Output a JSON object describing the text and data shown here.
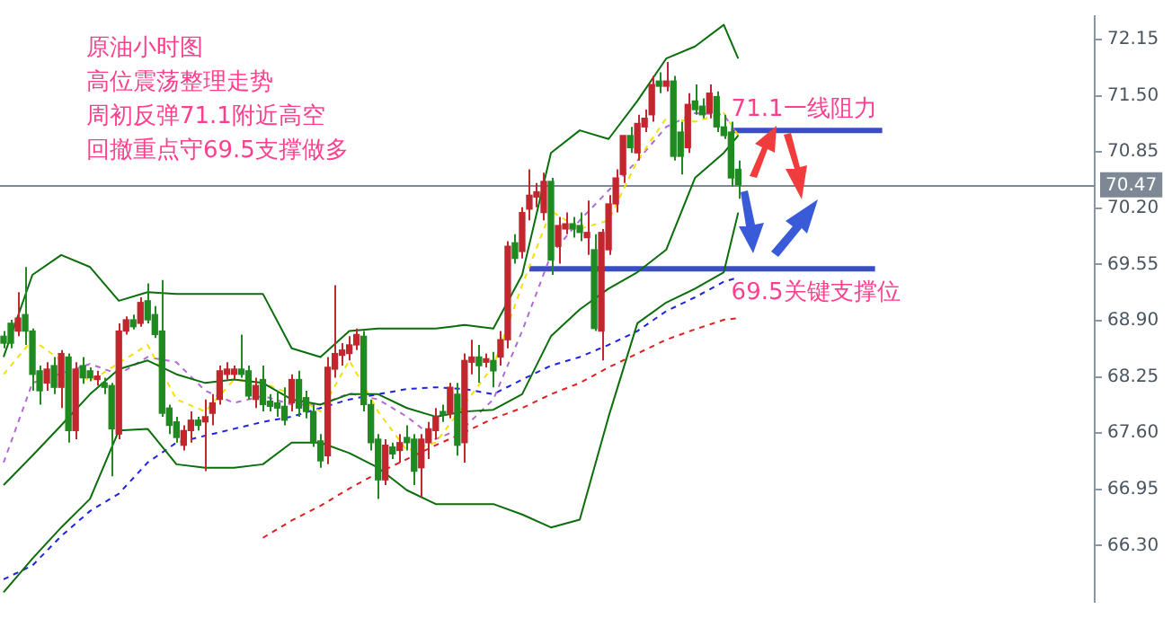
{
  "chart_data": {
    "type": "candlestick",
    "categories": [
      null,
      null,
      null,
      null,
      null,
      null,
      null,
      null,
      null,
      null,
      null,
      null,
      null,
      null,
      null,
      null,
      null,
      null,
      null,
      null,
      null,
      null,
      null,
      null,
      null,
      null,
      null,
      null,
      null,
      null,
      null,
      null,
      null,
      null,
      null,
      null,
      null,
      null,
      null,
      null,
      null,
      null,
      null,
      null,
      null,
      null,
      null,
      null,
      null,
      null,
      null,
      null,
      null,
      null,
      null,
      null,
      null,
      null,
      null,
      null,
      null,
      null,
      null,
      null,
      null,
      null,
      null,
      null,
      null,
      null,
      null,
      null,
      null,
      null,
      null,
      null,
      null,
      null,
      null,
      null,
      null,
      null,
      null,
      null,
      null,
      null,
      null,
      null,
      null,
      null,
      null,
      null,
      null,
      null,
      null,
      null,
      null,
      null,
      null,
      null,
      null,
      null,
      null,
      null,
      null,
      null,
      null,
      null,
      null,
      null,
      null,
      null,
      null,
      null,
      null,
      null,
      null,
      null,
      null,
      null,
      null,
      null,
      null,
      null,
      null,
      null,
      null,
      null,
      null,
      null,
      null,
      null,
      null,
      null,
      null,
      null,
      null,
      null,
      null,
      null,
      null,
      null,
      null,
      null,
      null,
      null,
      null,
      null,
      null,
      null,
      null,
      null
    ],
    "ohlc": [
      [
        68.72,
        68.78,
        68.58,
        68.64
      ],
      [
        68.87,
        68.91,
        68.58,
        68.64
      ],
      [
        68.78,
        69.23,
        68.72,
        68.93
      ],
      [
        68.97,
        69.52,
        68.62,
        68.78
      ],
      [
        68.78,
        68.81,
        68.09,
        68.28
      ],
      [
        68.32,
        68.38,
        67.93,
        68.09
      ],
      [
        68.18,
        68.42,
        68.09,
        68.34
      ],
      [
        68.38,
        68.48,
        68.05,
        68.13
      ],
      [
        68.13,
        68.56,
        67.89,
        68.52
      ],
      [
        68.48,
        68.52,
        67.49,
        67.63
      ],
      [
        67.63,
        68.42,
        67.53,
        68.34
      ],
      [
        68.38,
        68.48,
        68.17,
        68.24
      ],
      [
        68.32,
        68.36,
        68.2,
        68.24
      ],
      [
        68.22,
        68.32,
        68.15,
        68.26
      ],
      [
        68.18,
        68.24,
        68.05,
        68.13
      ],
      [
        68.15,
        68.18,
        67.1,
        67.65
      ],
      [
        67.59,
        68.87,
        67.53,
        68.78
      ],
      [
        68.78,
        68.95,
        68.74,
        68.91
      ],
      [
        68.91,
        68.97,
        68.8,
        68.83
      ],
      [
        68.87,
        69.17,
        68.83,
        69.11
      ],
      [
        69.13,
        69.33,
        68.87,
        68.91
      ],
      [
        68.97,
        69.07,
        68.7,
        68.74
      ],
      [
        68.78,
        69.37,
        67.79,
        67.83
      ],
      [
        67.89,
        67.93,
        67.59,
        67.69
      ],
      [
        67.73,
        67.79,
        67.49,
        67.55
      ],
      [
        67.46,
        67.69,
        67.4,
        67.63
      ],
      [
        67.63,
        67.85,
        67.49,
        67.75
      ],
      [
        67.75,
        67.79,
        67.63,
        67.69
      ],
      [
        67.73,
        67.99,
        67.16,
        67.79
      ],
      [
        67.83,
        68.05,
        67.69,
        67.95
      ],
      [
        67.99,
        68.38,
        67.93,
        68.32
      ],
      [
        68.28,
        68.42,
        68.22,
        68.34
      ],
      [
        68.28,
        68.38,
        68.22,
        68.34
      ],
      [
        68.34,
        68.74,
        68.24,
        68.28
      ],
      [
        68.32,
        68.38,
        67.99,
        68.03
      ],
      [
        67.99,
        68.24,
        67.89,
        68.15
      ],
      [
        68.22,
        68.38,
        67.85,
        67.93
      ],
      [
        67.97,
        68.05,
        67.85,
        67.91
      ],
      [
        67.95,
        68.09,
        67.79,
        67.89
      ],
      [
        67.91,
        68.13,
        67.69,
        67.75
      ],
      [
        67.95,
        68.28,
        67.85,
        68.22
      ],
      [
        68.22,
        68.32,
        67.79,
        67.89
      ],
      [
        68.01,
        68.09,
        67.77,
        67.85
      ],
      [
        67.85,
        67.93,
        67.44,
        67.49
      ],
      [
        67.51,
        67.59,
        67.2,
        67.28
      ],
      [
        67.34,
        68.48,
        67.24,
        68.36
      ],
      [
        68.34,
        69.31,
        68.24,
        68.52
      ],
      [
        68.5,
        68.64,
        68.38,
        68.56
      ],
      [
        68.52,
        68.72,
        68.44,
        68.62
      ],
      [
        68.62,
        68.81,
        68.56,
        68.74
      ],
      [
        68.72,
        68.78,
        67.85,
        67.93
      ],
      [
        67.93,
        67.99,
        67.4,
        67.49
      ],
      [
        67.53,
        67.59,
        66.84,
        67.06
      ],
      [
        67.06,
        67.53,
        67.0,
        67.46
      ],
      [
        67.44,
        67.49,
        67.3,
        67.36
      ],
      [
        67.4,
        67.59,
        67.26,
        67.49
      ],
      [
        67.55,
        67.69,
        67.4,
        67.49
      ],
      [
        67.53,
        67.59,
        67.0,
        67.16
      ],
      [
        67.2,
        67.59,
        66.86,
        67.53
      ],
      [
        67.49,
        67.73,
        67.3,
        67.65
      ],
      [
        67.63,
        67.89,
        67.53,
        67.79
      ],
      [
        67.85,
        67.93,
        67.73,
        67.81
      ],
      [
        67.83,
        68.18,
        67.77,
        68.13
      ],
      [
        68.05,
        68.18,
        67.34,
        67.46
      ],
      [
        67.49,
        68.52,
        67.26,
        68.44
      ],
      [
        68.42,
        68.68,
        68.28,
        68.48
      ],
      [
        68.48,
        68.62,
        68.18,
        68.38
      ],
      [
        68.42,
        68.52,
        68.36,
        68.46
      ],
      [
        68.44,
        68.54,
        68.13,
        68.32
      ],
      [
        68.48,
        68.78,
        68.38,
        68.68
      ],
      [
        68.68,
        69.82,
        68.58,
        69.76
      ],
      [
        69.8,
        69.9,
        69.56,
        69.62
      ],
      [
        69.7,
        70.21,
        69.62,
        70.15
      ],
      [
        70.19,
        70.65,
        70.06,
        70.35
      ],
      [
        70.33,
        70.49,
        70.21,
        70.39
      ],
      [
        70.15,
        70.61,
        70.06,
        70.51
      ],
      [
        70.51,
        70.55,
        69.43,
        69.6
      ],
      [
        69.76,
        70.1,
        69.56,
        70.0
      ],
      [
        69.96,
        70.15,
        69.9,
        70.02
      ],
      [
        70.02,
        70.1,
        69.86,
        69.96
      ],
      [
        70.0,
        70.15,
        69.82,
        69.92
      ],
      [
        69.86,
        70.29,
        69.66,
        69.92
      ],
      [
        69.72,
        69.9,
        68.78,
        68.81
      ],
      [
        68.78,
        69.96,
        68.44,
        69.92
      ],
      [
        69.72,
        70.35,
        69.66,
        70.25
      ],
      [
        70.25,
        70.65,
        70.15,
        70.55
      ],
      [
        70.59,
        71.04,
        70.49,
        71.04
      ],
      [
        71.04,
        71.14,
        70.84,
        70.9
      ],
      [
        70.84,
        71.28,
        70.75,
        71.18
      ],
      [
        71.14,
        71.34,
        71.08,
        71.24
      ],
      [
        71.28,
        71.73,
        71.2,
        71.63
      ],
      [
        71.67,
        71.77,
        71.53,
        71.61
      ],
      [
        71.61,
        71.89,
        71.55,
        71.67
      ],
      [
        71.67,
        71.73,
        70.75,
        70.8
      ],
      [
        71.08,
        71.2,
        70.59,
        70.8
      ],
      [
        70.9,
        71.53,
        70.84,
        71.4
      ],
      [
        71.44,
        71.63,
        71.28,
        71.34
      ],
      [
        71.38,
        71.47,
        71.24,
        71.28
      ],
      [
        71.3,
        71.63,
        71.24,
        71.53
      ],
      [
        71.49,
        71.55,
        71.08,
        71.14
      ],
      [
        71.14,
        71.28,
        71.0,
        71.04
      ],
      [
        71.08,
        71.2,
        70.45,
        70.55
      ],
      [
        70.65,
        70.75,
        70.31,
        70.47
      ],
      null,
      null,
      null,
      null,
      null,
      null,
      null,
      null,
      null,
      null,
      null,
      null,
      null,
      null,
      null,
      null,
      null,
      null,
      null,
      null,
      null,
      null,
      null,
      null,
      null,
      null,
      null,
      null,
      null,
      null,
      null,
      null,
      null,
      null,
      null,
      null,
      null,
      null,
      null,
      null,
      null,
      null,
      null,
      null,
      null,
      null,
      null,
      null,
      null
    ],
    "colors": [
      "#1f8a1f",
      "#1f8a1f",
      "#c1272d",
      "#1f8a1f",
      "#1f8a1f",
      "#1f8a1f",
      "#c1272d",
      "#1f8a1f",
      "#c1272d",
      "#1f8a1f",
      "#c1272d",
      "#1f8a1f",
      "#1f8a1f",
      "#c1272d",
      "#1f8a1f",
      "#1f8a1f",
      "#c1272d",
      "#c1272d",
      "#1f8a1f",
      "#c1272d",
      "#1f8a1f",
      "#1f8a1f",
      "#1f8a1f",
      "#1f8a1f",
      "#1f8a1f",
      "#c1272d",
      "#c1272d",
      "#1f8a1f",
      "#c1272d",
      "#c1272d",
      "#c1272d",
      "#c1272d",
      "#c1272d",
      "#1f8a1f",
      "#1f8a1f",
      "#c1272d",
      "#1f8a1f",
      "#1f8a1f",
      "#1f8a1f",
      "#1f8a1f",
      "#c1272d",
      "#1f8a1f",
      "#1f8a1f",
      "#1f8a1f",
      "#1f8a1f",
      "#c1272d",
      "#c1272d",
      "#c1272d",
      "#c1272d",
      "#c1272d",
      "#1f8a1f",
      "#1f8a1f",
      "#1f8a1f",
      "#c1272d",
      "#1f8a1f",
      "#c1272d",
      "#1f8a1f",
      "#1f8a1f",
      "#c1272d",
      "#c1272d",
      "#c1272d",
      "#1f8a1f",
      "#c1272d",
      "#1f8a1f",
      "#c1272d",
      "#c1272d",
      "#1f8a1f",
      "#c1272d",
      "#1f8a1f",
      "#c1272d",
      "#c1272d",
      "#1f8a1f",
      "#c1272d",
      "#c1272d",
      "#c1272d",
      "#c1272d",
      "#1f8a1f",
      "#c1272d",
      "#c1272d",
      "#1f8a1f",
      "#1f8a1f",
      "#c1272d",
      "#1f8a1f",
      "#c1272d",
      "#c1272d",
      "#c1272d",
      "#c1272d",
      "#1f8a1f",
      "#c1272d",
      "#c1272d",
      "#c1272d",
      "#1f8a1f",
      "#c1272d",
      "#1f8a1f",
      "#1f8a1f",
      "#c1272d",
      "#1f8a1f",
      "#1f8a1f",
      "#c1272d",
      "#1f8a1f",
      "#1f8a1f",
      "#1f8a1f",
      "#1f8a1f",
      null,
      null,
      null,
      null,
      null,
      null,
      null,
      null,
      null,
      null,
      null,
      null,
      null,
      null,
      null,
      null,
      null,
      null,
      null,
      null,
      null,
      null,
      null,
      null,
      null,
      null,
      null,
      null,
      null,
      null,
      null,
      null,
      null,
      null,
      null,
      null,
      null,
      null,
      null,
      null,
      null,
      null,
      null,
      null,
      null,
      null,
      null,
      null,
      null
    ],
    "series": [
      {
        "type": "line",
        "color": "#0a6e0a",
        "line_style": "solid",
        "values": [
          68.48,
          null,
          null,
          null,
          69.43,
          null,
          null,
          null,
          69.66,
          null,
          null,
          null,
          69.52,
          null,
          null,
          null,
          69.13,
          null,
          null,
          null,
          69.23,
          null,
          null,
          null,
          69.21,
          null,
          null,
          null,
          69.21,
          null,
          null,
          null,
          69.21,
          null,
          null,
          null,
          69.21,
          null,
          null,
          null,
          68.58,
          null,
          null,
          null,
          68.48,
          null,
          null,
          null,
          68.78,
          null,
          null,
          null,
          68.81,
          null,
          null,
          null,
          68.81,
          null,
          null,
          null,
          68.81,
          null,
          null,
          null,
          68.85,
          null,
          null,
          null,
          68.81,
          null,
          null,
          null,
          69.43,
          null,
          null,
          null,
          70.84,
          null,
          null,
          null,
          71.1,
          null,
          null,
          null,
          71.0,
          null,
          null,
          null,
          71.44,
          null,
          null,
          null,
          71.93,
          null,
          null,
          null,
          72.07,
          null,
          null,
          null,
          72.32,
          null,
          71.93,
          null,
          null,
          null,
          null,
          null,
          null,
          null,
          null,
          null,
          null,
          null,
          null,
          null,
          null,
          null,
          null,
          null,
          null,
          null,
          null,
          null,
          null,
          null,
          null,
          null,
          null,
          null,
          null,
          null,
          null,
          null,
          null,
          null,
          null,
          null,
          null,
          null,
          null,
          null,
          null,
          null,
          null,
          null,
          null,
          null,
          null,
          null,
          null,
          null
        ]
      },
      {
        "type": "line",
        "color": "#0a6e0a",
        "line_style": "solid",
        "values": [
          67.0,
          null,
          null,
          null,
          67.34,
          null,
          null,
          null,
          67.69,
          null,
          null,
          null,
          68.05,
          null,
          null,
          null,
          68.34,
          null,
          null,
          null,
          68.44,
          null,
          null,
          null,
          68.28,
          null,
          null,
          null,
          68.18,
          null,
          null,
          null,
          68.22,
          null,
          null,
          null,
          68.18,
          null,
          null,
          null,
          67.99,
          null,
          null,
          null,
          67.93,
          null,
          null,
          null,
          68.05,
          null,
          null,
          null,
          68.05,
          null,
          null,
          null,
          67.89,
          null,
          null,
          null,
          67.79,
          null,
          null,
          null,
          67.85,
          null,
          null,
          null,
          67.87,
          null,
          null,
          null,
          68.05,
          null,
          null,
          null,
          68.72,
          null,
          null,
          null,
          69.03,
          null,
          null,
          null,
          69.27,
          null,
          null,
          null,
          69.46,
          null,
          null,
          null,
          69.72,
          null,
          null,
          null,
          70.55,
          null,
          null,
          null,
          70.84,
          null,
          71.04,
          null,
          null,
          null,
          null,
          null,
          null,
          null,
          null,
          null,
          null,
          null,
          null,
          null,
          null,
          null,
          null,
          null,
          null,
          null,
          null,
          null,
          null,
          null,
          null,
          null,
          null,
          null,
          null,
          null,
          null,
          null,
          null,
          null,
          null,
          null,
          null,
          null,
          null,
          null,
          null,
          null,
          null,
          null,
          null,
          null,
          null,
          null,
          null,
          null
        ]
      },
      {
        "type": "line",
        "color": "#0a6e0a",
        "line_style": "solid",
        "values": [
          65.76,
          null,
          null,
          null,
          66.15,
          null,
          null,
          null,
          66.51,
          null,
          null,
          null,
          66.84,
          null,
          null,
          null,
          67.63,
          null,
          null,
          null,
          67.65,
          null,
          null,
          null,
          67.24,
          null,
          null,
          null,
          67.2,
          null,
          null,
          null,
          67.2,
          null,
          null,
          null,
          67.24,
          null,
          null,
          null,
          67.49,
          null,
          null,
          null,
          67.49,
          null,
          null,
          null,
          67.37,
          null,
          null,
          null,
          67.2,
          null,
          null,
          null,
          66.94,
          null,
          null,
          null,
          66.78,
          null,
          null,
          null,
          66.78,
          null,
          null,
          null,
          66.78,
          null,
          null,
          null,
          66.66,
          null,
          null,
          null,
          66.51,
          null,
          null,
          null,
          66.6,
          null,
          null,
          null,
          67.79,
          null,
          null,
          null,
          68.87,
          null,
          null,
          null,
          69.11,
          null,
          null,
          null,
          69.27,
          null,
          null,
          null,
          69.46,
          null,
          70.15,
          null,
          null,
          null,
          null,
          null,
          null,
          null,
          null,
          null,
          null,
          null,
          null,
          null,
          null,
          null,
          null,
          null,
          null,
          null,
          null,
          null,
          null,
          null,
          null,
          null,
          null,
          null,
          null,
          null,
          null,
          null,
          null,
          null,
          null,
          null,
          null,
          null,
          null,
          null,
          null,
          null,
          null,
          null,
          null,
          null,
          null,
          null,
          null,
          null
        ]
      },
      {
        "type": "line",
        "color": "#f2e200",
        "line_style": "dashed",
        "values": [
          68.28,
          null,
          null,
          null,
          68.68,
          null,
          null,
          null,
          null,
          null,
          null,
          null,
          68.2,
          null,
          null,
          null,
          null,
          null,
          null,
          null,
          68.62,
          null,
          null,
          null,
          67.99,
          null,
          null,
          null,
          67.85,
          null,
          null,
          null,
          68.22,
          null,
          null,
          null,
          68.18,
          null,
          null,
          null,
          68.05,
          null,
          null,
          null,
          67.85,
          null,
          null,
          null,
          68.44,
          null,
          null,
          null,
          67.85,
          null,
          null,
          null,
          67.4,
          null,
          null,
          null,
          67.49,
          null,
          null,
          null,
          null,
          null,
          null,
          null,
          68.38,
          null,
          null,
          null,
          69.31,
          null,
          null,
          null,
          70.17,
          null,
          null,
          null,
          69.96,
          null,
          null,
          null,
          70.06,
          null,
          null,
          null,
          70.75,
          null,
          null,
          null,
          71.24,
          null,
          null,
          null,
          71.2,
          null,
          null,
          null,
          71.3,
          null,
          71.04,
          null,
          null,
          null,
          null,
          null,
          null,
          null,
          null,
          null,
          null,
          null,
          null,
          null,
          null,
          null,
          null,
          null,
          null,
          null,
          null,
          null,
          null,
          null,
          null,
          null,
          null,
          null,
          null,
          null,
          null,
          null,
          null,
          null,
          null,
          null,
          null,
          null,
          null,
          null,
          null,
          null,
          null,
          null,
          null,
          null,
          null,
          null,
          null,
          null
        ]
      },
      {
        "type": "line",
        "color": "#b36ad6",
        "line_style": "dashed",
        "values": [
          67.26,
          null,
          null,
          null,
          68.18,
          null,
          null,
          null,
          null,
          null,
          null,
          null,
          68.4,
          null,
          null,
          null,
          68.28,
          null,
          null,
          null,
          68.48,
          null,
          null,
          null,
          68.42,
          null,
          null,
          null,
          68.09,
          null,
          null,
          null,
          67.95,
          null,
          null,
          null,
          68.03,
          null,
          null,
          null,
          67.93,
          null,
          null,
          null,
          67.93,
          null,
          null,
          null,
          68.06,
          null,
          null,
          null,
          67.99,
          null,
          null,
          null,
          67.79,
          null,
          null,
          null,
          67.53,
          null,
          null,
          null,
          67.67,
          null,
          null,
          null,
          67.99,
          null,
          null,
          null,
          68.78,
          null,
          null,
          null,
          69.66,
          null,
          null,
          null,
          70.06,
          null,
          null,
          null,
          null,
          null,
          null,
          null,
          70.75,
          null,
          null,
          null,
          71.14,
          null,
          null,
          null,
          71.3,
          null,
          null,
          null,
          71.28,
          null,
          71.04,
          null,
          null,
          null,
          null,
          null,
          null,
          null,
          null,
          null,
          null,
          null,
          null,
          null,
          null,
          null,
          null,
          null,
          null,
          null,
          null,
          null,
          null,
          null,
          null,
          null,
          null,
          null,
          null,
          null,
          null,
          null,
          null,
          null,
          null,
          null,
          null,
          null,
          null,
          null,
          null,
          null,
          null,
          null,
          null,
          null,
          null,
          null,
          null,
          null
        ]
      },
      {
        "type": "line",
        "color": "#1f22e0",
        "line_style": "dashed",
        "values": [
          65.91,
          null,
          null,
          null,
          66.07,
          null,
          null,
          null,
          66.41,
          null,
          null,
          null,
          66.7,
          null,
          null,
          null,
          66.9,
          null,
          null,
          null,
          67.26,
          null,
          null,
          null,
          67.49,
          null,
          null,
          null,
          67.57,
          null,
          null,
          null,
          67.65,
          null,
          null,
          null,
          67.73,
          null,
          null,
          null,
          67.79,
          null,
          null,
          null,
          67.89,
          null,
          null,
          null,
          67.99,
          null,
          null,
          null,
          68.05,
          null,
          null,
          null,
          68.11,
          null,
          null,
          null,
          68.13,
          null,
          null,
          null,
          68.11,
          null,
          null,
          null,
          68.05,
          null,
          null,
          null,
          68.22,
          null,
          null,
          null,
          68.38,
          null,
          null,
          null,
          68.48,
          null,
          null,
          null,
          68.62,
          null,
          null,
          null,
          68.78,
          null,
          null,
          null,
          69.01,
          null,
          null,
          null,
          69.17,
          null,
          null,
          null,
          69.35,
          null,
          69.4,
          null,
          null,
          null,
          null,
          null,
          null,
          null,
          null,
          null,
          null,
          null,
          null,
          null,
          null,
          null,
          null,
          null,
          null,
          null,
          null,
          null,
          null,
          null,
          null,
          null,
          null,
          null,
          null,
          null,
          null,
          null,
          null,
          null,
          null,
          null,
          null,
          null,
          null,
          null,
          null,
          null,
          null,
          null,
          null,
          null,
          null,
          null,
          null,
          null
        ]
      },
      {
        "type": "line",
        "color": "#e02020",
        "line_style": "dashed",
        "values": [
          null,
          null,
          null,
          null,
          null,
          null,
          null,
          null,
          null,
          null,
          null,
          null,
          null,
          null,
          null,
          null,
          null,
          null,
          null,
          null,
          null,
          null,
          null,
          null,
          null,
          null,
          null,
          null,
          null,
          null,
          null,
          null,
          null,
          null,
          null,
          null,
          66.39,
          null,
          null,
          null,
          66.59,
          null,
          null,
          null,
          66.76,
          null,
          null,
          null,
          66.96,
          null,
          null,
          null,
          67.14,
          null,
          null,
          null,
          67.3,
          null,
          null,
          null,
          67.46,
          null,
          null,
          null,
          67.61,
          null,
          null,
          null,
          67.77,
          null,
          null,
          null,
          67.89,
          null,
          null,
          null,
          68.05,
          null,
          null,
          null,
          68.18,
          null,
          null,
          null,
          68.36,
          null,
          null,
          null,
          68.52,
          null,
          null,
          null,
          68.68,
          null,
          null,
          null,
          68.8,
          null,
          null,
          null,
          68.91,
          null,
          68.93,
          null,
          null,
          null,
          null,
          null,
          null,
          null,
          null,
          null,
          null,
          null,
          null,
          null,
          null,
          null,
          null,
          null,
          null,
          null,
          null,
          null,
          null,
          null,
          null,
          null,
          null,
          null,
          null,
          null,
          null,
          null,
          null,
          null,
          null,
          null,
          null,
          null,
          null,
          null,
          null,
          null,
          null,
          null,
          null,
          null,
          null,
          null,
          null,
          null
        ]
      },
      {
        "type": "line",
        "color": "#3b4cc8",
        "line_style": "solid",
        "values": [
          null,
          null,
          null,
          null,
          null,
          null,
          null,
          null,
          null,
          null,
          null,
          null,
          null,
          null,
          null,
          null,
          null,
          null,
          null,
          null,
          null,
          null,
          null,
          null,
          null,
          null,
          null,
          null,
          null,
          null,
          null,
          null,
          null,
          null,
          null,
          null,
          null,
          null,
          null,
          null,
          null,
          null,
          null,
          null,
          null,
          null,
          null,
          null,
          null,
          null,
          null,
          null,
          null,
          null,
          null,
          null,
          null,
          null,
          null,
          null,
          null,
          null,
          null,
          null,
          null,
          null,
          null,
          null,
          null,
          null,
          null,
          null,
          null,
          null,
          null,
          null,
          null,
          null,
          null,
          null,
          null,
          null,
          null,
          null,
          null,
          null,
          null,
          null,
          null,
          null,
          null,
          null,
          null,
          null,
          null,
          null,
          null,
          null,
          null,
          null,
          null,
          71.1,
          null,
          null,
          null,
          null,
          null,
          null,
          null,
          null,
          null,
          null,
          null,
          null,
          null,
          null,
          null,
          null,
          null,
          null,
          null,
          null,
          71.1,
          null,
          null,
          null,
          null,
          null,
          null,
          null,
          null,
          null,
          null,
          null,
          null,
          null,
          null,
          null,
          null,
          null,
          null,
          null,
          null,
          null,
          null,
          null,
          null,
          null,
          null,
          null,
          null,
          null
        ]
      },
      {
        "type": "line",
        "color": "#3b4cc8",
        "line_style": "solid",
        "values": [
          null,
          null,
          null,
          null,
          null,
          null,
          null,
          null,
          null,
          null,
          null,
          null,
          null,
          null,
          null,
          null,
          null,
          null,
          null,
          null,
          null,
          null,
          null,
          null,
          null,
          null,
          null,
          null,
          null,
          null,
          null,
          null,
          null,
          null,
          null,
          null,
          null,
          null,
          null,
          null,
          null,
          null,
          null,
          null,
          null,
          null,
          null,
          null,
          null,
          null,
          null,
          null,
          null,
          null,
          null,
          null,
          null,
          null,
          null,
          null,
          null,
          null,
          null,
          null,
          null,
          null,
          null,
          null,
          null,
          null,
          null,
          null,
          null,
          69.5,
          null,
          null,
          null,
          null,
          null,
          null,
          null,
          null,
          null,
          null,
          null,
          null,
          null,
          null,
          null,
          null,
          null,
          null,
          null,
          null,
          null,
          null,
          null,
          null,
          null,
          null,
          null,
          null,
          null,
          null,
          null,
          null,
          null,
          null,
          null,
          null,
          null,
          null,
          null,
          null,
          null,
          null,
          null,
          null,
          null,
          null,
          null,
          69.5,
          null,
          null,
          null,
          null,
          null,
          null,
          null,
          null,
          null,
          null,
          null,
          null,
          null,
          null,
          null,
          null,
          null,
          null,
          null,
          null,
          null,
          null,
          null,
          null,
          null,
          null,
          null,
          null,
          null,
          null
        ]
      }
    ],
    "ylim": [
      65.65,
      72.42
    ],
    "yticks": [
      {
        "value": 72.15,
        "label": "72.15"
      },
      {
        "value": 71.5,
        "label": "71.50"
      },
      {
        "value": 70.85,
        "label": "70.85"
      },
      {
        "value": 70.2,
        "label": "70.20"
      },
      {
        "value": 69.55,
        "label": "69.55"
      },
      {
        "value": 68.9,
        "label": "68.90"
      },
      {
        "value": 68.25,
        "label": "68.25"
      },
      {
        "value": 67.6,
        "label": "67.60"
      },
      {
        "value": 66.95,
        "label": "66.95"
      },
      {
        "value": 66.3,
        "label": "66.30"
      }
    ],
    "tick_labels": "y",
    "marker": "none",
    "ref_lines": [
      {
        "axis": "y",
        "value": 70.47,
        "label": "70.47",
        "color": "#7d8894"
      }
    ],
    "annotations": [
      "原油小时图",
      "高位震荡整理走势",
      "周初反弹71.1附近高空",
      "回撤重点守69.5支撑做多",
      {
        "text": "71.1一线阻力",
        "y": 71.1
      },
      {
        "text": "69.5关键支撑位",
        "y": 69.5
      }
    ]
  }
}
